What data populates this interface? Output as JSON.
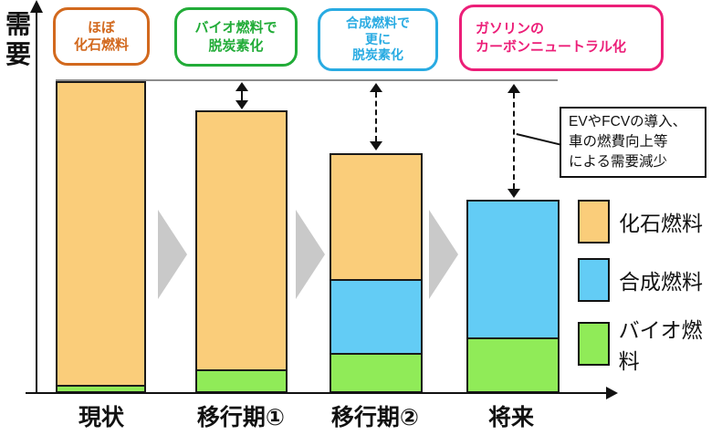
{
  "colors": {
    "fossil_fill": "#FACD7A",
    "synthetic_fill": "#63CCF5",
    "bio_fill": "#90EB58",
    "flow_arrow": "#C9C9C9",
    "reference_line": "#8C8C8C"
  },
  "y_axis": {
    "label": "需要"
  },
  "stage_boxes": [
    {
      "text": "ほぼ\n化石燃料",
      "color": "#D2691E"
    },
    {
      "text": "バイオ燃料で\n脱炭素化",
      "color": "#22AC38"
    },
    {
      "text": "合成燃料で\n更に\n脱炭素化",
      "color": "#29ABE2"
    },
    {
      "text": "ガソリンの\nカーボンニュートラル化",
      "color": "#EC1E78"
    }
  ],
  "annotation": {
    "text": "EVやFCVの導入、\n車の燃費向上等\nによる需要減少"
  },
  "legend": {
    "items": [
      {
        "label": "化石燃料",
        "color": "#FACD7A"
      },
      {
        "label": "合成燃料",
        "color": "#63CCF5"
      },
      {
        "label": "バイオ燃料",
        "color": "#90EB58"
      }
    ]
  },
  "chart_data": {
    "type": "bar",
    "stacked": true,
    "title": "",
    "ylabel": "需要",
    "categories": [
      "現状",
      "移行期①",
      "移行期②",
      "将来"
    ],
    "series": [
      {
        "name": "化石燃料",
        "color": "#FACD7A",
        "values": [
          98.5,
          84,
          41,
          0
        ]
      },
      {
        "name": "合成燃料",
        "color": "#63CCF5",
        "values": [
          0,
          0,
          24,
          45
        ]
      },
      {
        "name": "バイオ燃料",
        "color": "#90EB58",
        "values": [
          1.5,
          6.5,
          12,
          17
        ]
      }
    ],
    "totals": [
      100,
      90.5,
      77,
      62
    ],
    "ylim": [
      0,
      100
    ],
    "value_unit": "relative demand (current = 100, estimated from bar heights)",
    "reference_line_at": 100,
    "grid": false,
    "legend_position": "right",
    "annotations": [
      "EVやFCVの導入、車の燃費向上等による需要減少"
    ]
  }
}
